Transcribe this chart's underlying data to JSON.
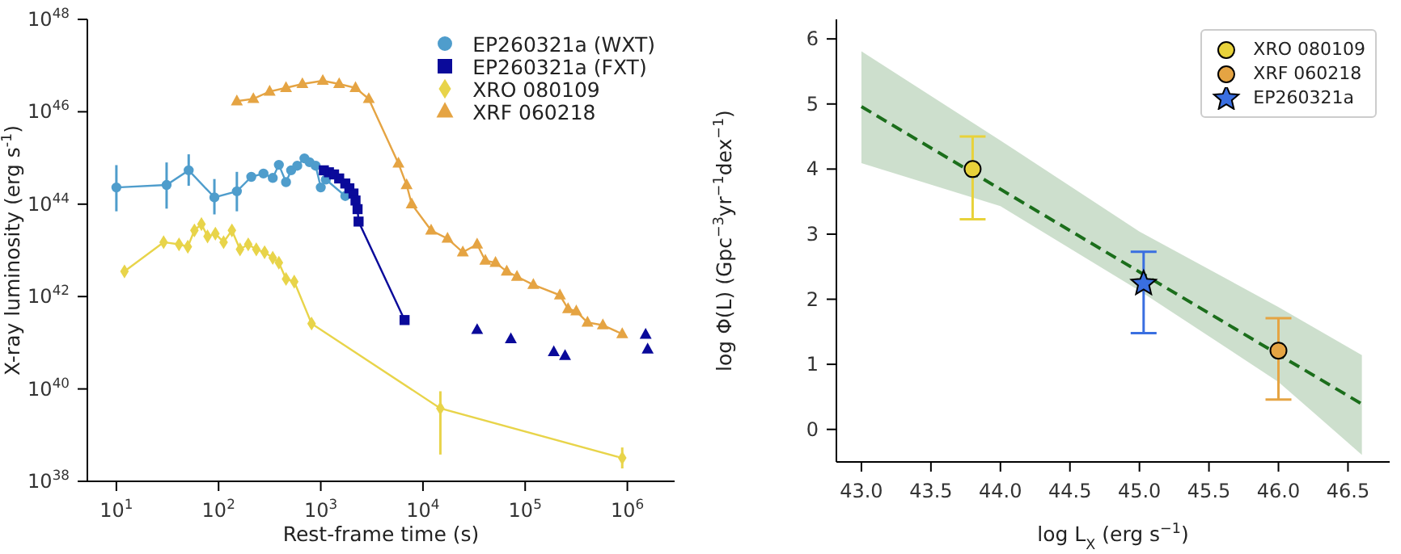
{
  "chart_data": [
    {
      "type": "line",
      "xlabel": "Rest-frame time (s)",
      "ylabel": "X-ray luminosity (erg s$^{-1}$)",
      "log": "xy",
      "grid": false,
      "legend": "top right",
      "xlim": [
        5.2,
        2900000
      ],
      "ylim": [
        1e+38,
        1e+48
      ],
      "xticks": [
        {
          "value": 10,
          "label": "10$^{1}$"
        },
        {
          "value": 100,
          "label": "10$^{2}$"
        },
        {
          "value": 1000,
          "label": "10$^{3}$"
        },
        {
          "value": 10000,
          "label": "10$^{4}$"
        },
        {
          "value": 100000,
          "label": "10$^{5}$"
        },
        {
          "value": 1000000,
          "label": "10$^{6}$"
        }
      ],
      "yticks": [
        {
          "value": 1e+38,
          "label": "10$^{38}$"
        },
        {
          "value": 1e+40,
          "label": "10$^{40}$"
        },
        {
          "value": 1e+42,
          "label": "10$^{42}$"
        },
        {
          "value": 1e+44,
          "label": "10$^{44}$"
        },
        {
          "value": 1e+46,
          "label": "10$^{46}$"
        },
        {
          "value": 1e+48,
          "label": "10$^{48}$"
        }
      ],
      "series": [
        {
          "name": "EP260321a (WXT)",
          "marker": "circle",
          "color": "#4f9dcc",
          "x": [
            10,
            31,
            51,
            91,
            151,
            209,
            275,
            339,
            389,
            457,
            513,
            589,
            692,
            776,
            891,
            1000,
            1122,
            1349,
            1738
          ],
          "values": [
            2.3e+44,
            2.6e+44,
            5.4e+44,
            1.4e+44,
            1.9e+44,
            3.9e+44,
            4.6e+44,
            3.7e+44,
            7.1e+44,
            3e+44,
            5.4e+44,
            6.8e+44,
            9.8e+44,
            8.1e+44,
            6.8e+44,
            2.3e+44,
            3.4e+44,
            null,
            1.5e+44
          ],
          "errors": [
            [
              7e+43,
              7e+44
            ],
            [
              8e+43,
              8e+44
            ],
            [
              2.5e+44,
              1.2e+45
            ],
            [
              6e+43,
              3.5e+44
            ],
            [
              7e+43,
              5e+44
            ],
            null,
            null,
            null,
            null,
            null,
            null,
            null,
            null,
            null,
            null,
            null,
            null,
            null,
            null
          ]
        },
        {
          "name": "EP260321a (FXT)",
          "marker": "square",
          "color": "#0a0a9a",
          "x": [
            1072,
            1202,
            1349,
            1514,
            1738,
            1905,
            2089,
            2188,
            2291,
            2344,
            6607
          ],
          "values": [
            5.4e+44,
            4.9e+44,
            4.4e+44,
            3.6e+44,
            2.8e+44,
            2.2e+44,
            1.7e+44,
            1.2e+44,
            7.8e+43,
            4.2e+43,
            3.1e+41
          ]
        },
        {
          "type": "scatter",
          "marker": "triangle",
          "color": "#0a0a9a",
          "x": [
            33900,
            72400,
            190500,
            245500,
            1510000,
            1580000
          ],
          "values": [
            1.9e+41,
            1.2e+41,
            6.3e+40,
            5.2e+40,
            1.5e+41,
            7.2e+40
          ]
        },
        {
          "name": "XRO 080109",
          "marker": "diamond",
          "color": "#e8d44a",
          "x": [
            12,
            29,
            41,
            50,
            58,
            68,
            78,
            93,
            112,
            135,
            162,
            195,
            234,
            282,
            339,
            389,
            457,
            550,
            813,
            14800,
            891000
          ],
          "values": [
            3.5e+42,
            1.5e+43,
            1.35e+43,
            1.2e+43,
            2.7e+43,
            3.7e+43,
            2e+43,
            2.3e+43,
            1.5e+43,
            2.7e+43,
            1.05e+43,
            1.35e+43,
            1.05e+43,
            9.1e+42,
            6.9e+42,
            5.4e+42,
            2.4e+42,
            2.1e+42,
            2.6e+41,
            3.8e+39,
            3.2e+38
          ],
          "errors": [
            null,
            null,
            null,
            null,
            null,
            null,
            null,
            null,
            null,
            null,
            null,
            null,
            null,
            null,
            null,
            null,
            null,
            null,
            null,
            [
              3.8e+38,
              8.9e+39
            ],
            [
              1.9e+38,
              5.4e+38
            ]
          ]
        },
        {
          "name": "XRF 060218",
          "marker": "triangle",
          "color": "#e5a443",
          "x": [
            151,
            219,
            316,
            457,
            661,
            1047,
            1514,
            2188,
            2951,
            5754,
            6918,
            7762,
            12020,
            17380,
            24550,
            33880,
            40740,
            51290,
            66070,
            83180,
            120200,
            218800,
            263000,
            316200,
            407400,
            575400,
            891300
          ],
          "values": [
            1.7e+46,
            1.9e+46,
            2.75e+46,
            3.3e+46,
            4e+46,
            4.7e+46,
            4e+46,
            3.3e+46,
            1.9e+46,
            7.6e+44,
            2.6e+44,
            1e+44,
            2.7e+43,
            1.8e+43,
            9.1e+42,
            1.35e+43,
            6e+42,
            5.4e+42,
            3.5e+42,
            2.7e+42,
            1.8e+42,
            1.07e+42,
            5.4e+41,
            4.8e+41,
            2.75e+41,
            2.4e+41,
            1.55e+41
          ]
        }
      ]
    },
    {
      "type": "scatter",
      "xlabel": "log L$_{X}$ (erg s$^{−1}$)",
      "ylabel": "log Φ(L) (Gpc$^{−3}$yr$^{−1}$dex$^{−1}$)",
      "grid": false,
      "legend": "top right",
      "xlim": [
        42.82,
        46.8
      ],
      "ylim": [
        -0.5,
        6.3
      ],
      "xticks": [
        {
          "value": 43,
          "label": "43.0"
        },
        {
          "value": 43.5,
          "label": "43.5"
        },
        {
          "value": 44,
          "label": "44.0"
        },
        {
          "value": 44.5,
          "label": "44.5"
        },
        {
          "value": 45,
          "label": "45.0"
        },
        {
          "value": 45.5,
          "label": "45.5"
        },
        {
          "value": 46,
          "label": "46.0"
        },
        {
          "value": 46.5,
          "label": "46.5"
        }
      ],
      "yticks": [
        0,
        1,
        2,
        3,
        4,
        5,
        6
      ],
      "series": [
        {
          "type": "line",
          "marker": "none",
          "line_style": "dashed",
          "color": "#1b6e1b",
          "x": [
            43,
            44,
            45,
            46,
            46.6
          ],
          "values": [
            4.96,
            3.69,
            2.42,
            1.15,
            0.39
          ],
          "lower": [
            4.09,
            3.43,
            2.13,
            0.73,
            -0.39
          ],
          "upper": [
            5.81,
            4.44,
            3.04,
            1.88,
            1.14
          ]
        },
        {
          "name": "XRO 080109",
          "marker": "circle",
          "color": "#e8d23a",
          "x": [
            43.8
          ],
          "values": [
            4.0
          ],
          "errors": [
            [
              3.23,
              4.5
            ]
          ]
        },
        {
          "name": "XRF 060218",
          "marker": "circle",
          "color": "#e5a443",
          "x": [
            46.0
          ],
          "values": [
            1.21
          ],
          "errors": [
            [
              0.46,
              1.71
            ]
          ]
        },
        {
          "name": "EP260321a",
          "marker": "star",
          "color": "#3a6fe0",
          "x": [
            45.03
          ],
          "values": [
            2.24
          ],
          "errors": [
            [
              1.48,
              2.73
            ]
          ]
        }
      ]
    }
  ]
}
